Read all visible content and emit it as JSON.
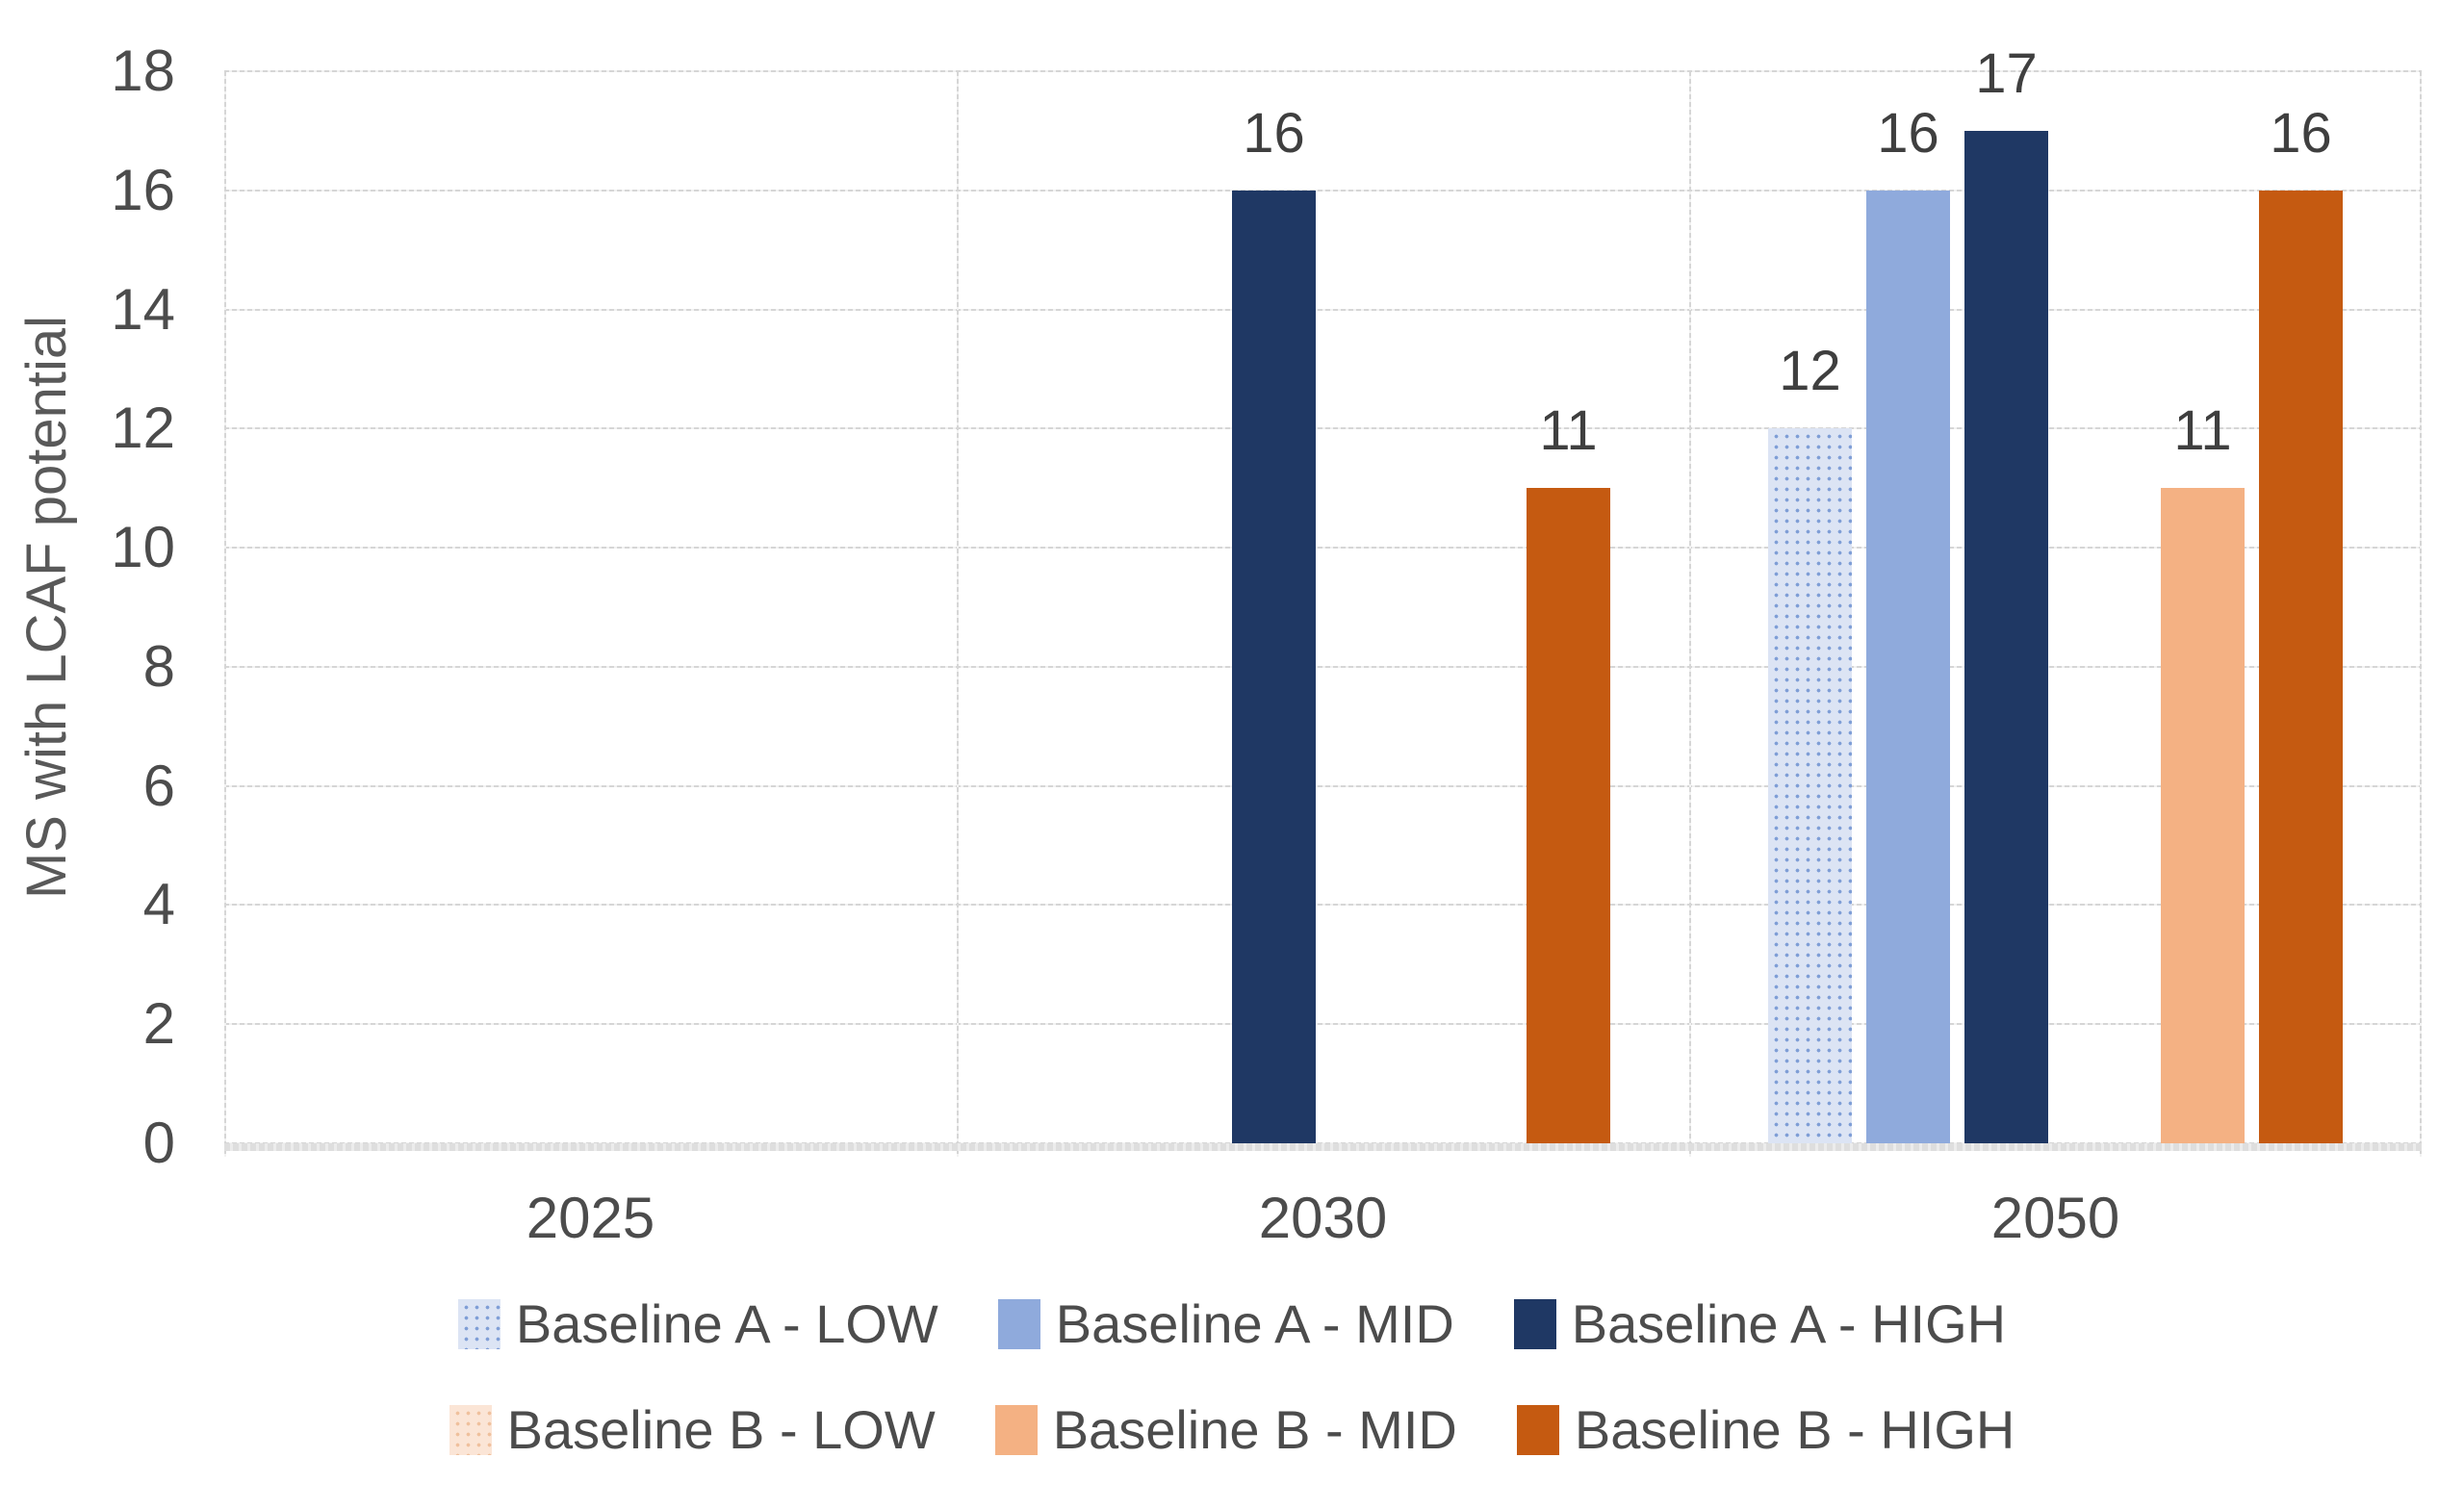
{
  "chart_data": {
    "type": "bar",
    "title": "",
    "xlabel": "",
    "ylabel": "MS with LCAF potential",
    "ylim": [
      0,
      18
    ],
    "ytick_step": 2,
    "grid": true,
    "legend_position": "bottom",
    "categories": [
      "2025",
      "2030",
      "2050"
    ],
    "series": [
      {
        "name": "Baseline A - LOW",
        "color": "#dce4f4",
        "pattern": "dots-blue",
        "values": [
          null,
          null,
          12
        ]
      },
      {
        "name": "Baseline A - MID",
        "color": "#8faadc",
        "pattern": null,
        "values": [
          null,
          null,
          16
        ]
      },
      {
        "name": "Baseline A - HIGH",
        "color": "#1f3864",
        "pattern": null,
        "values": [
          null,
          16,
          17
        ]
      },
      {
        "name": "Baseline B - LOW",
        "color": "#fbe5d6",
        "pattern": "dots-orange",
        "values": [
          null,
          null,
          null
        ]
      },
      {
        "name": "Baseline B - MID",
        "color": "#f4b183",
        "pattern": null,
        "values": [
          null,
          null,
          11
        ]
      },
      {
        "name": "Baseline B - HIGH",
        "color": "#c55a11",
        "pattern": null,
        "values": [
          null,
          11,
          16
        ]
      }
    ],
    "data_labels_shown": true,
    "legend_rows": [
      [
        0,
        1,
        2
      ],
      [
        3,
        4,
        5
      ]
    ]
  },
  "colors": {
    "gridline": "#d9d9d9",
    "axis_text": "#4c4c4c",
    "value_label_text": "#3f3f3f",
    "y_title_text": "#595959",
    "background": "#ffffff"
  }
}
